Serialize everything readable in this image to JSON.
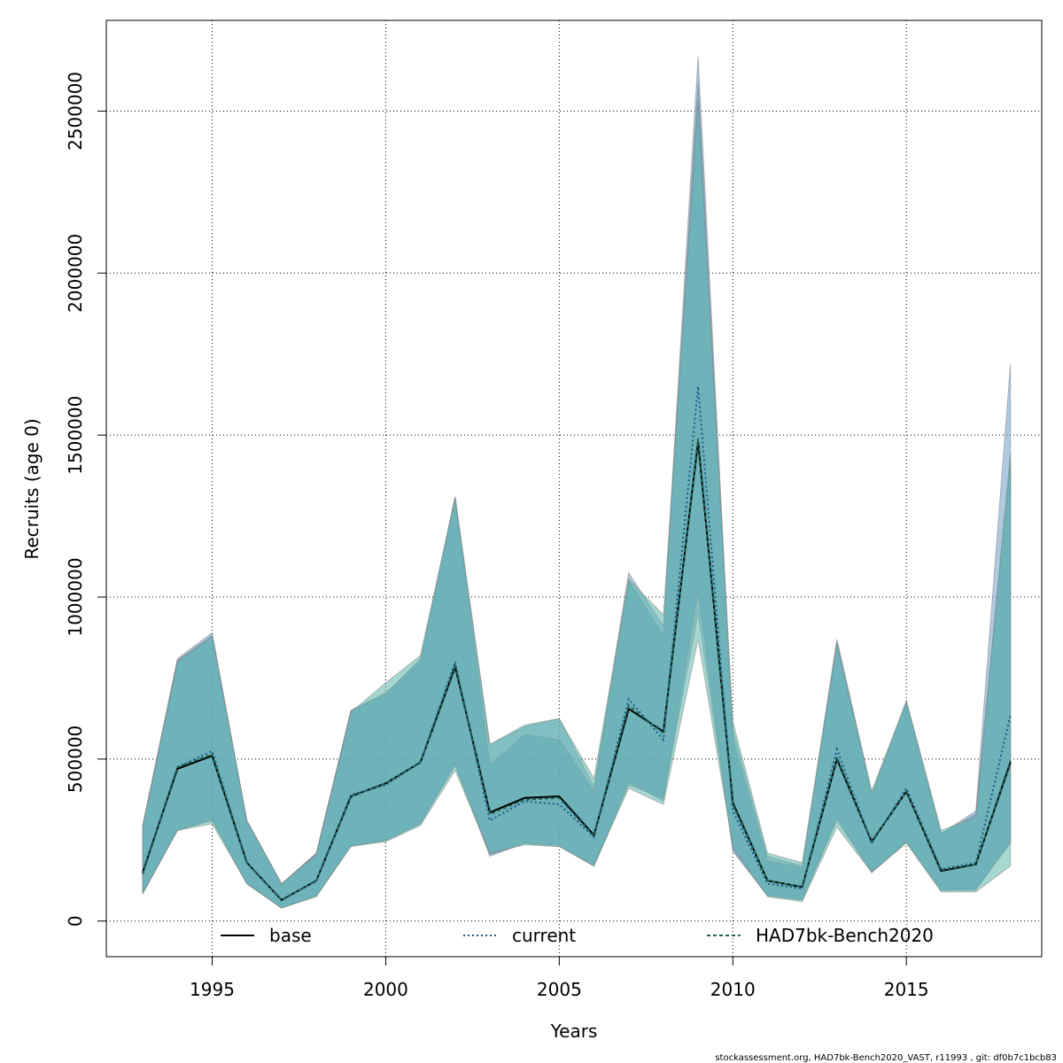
{
  "chart_data": {
    "type": "area",
    "xlabel": "Years",
    "ylabel": "Recruits (age 0)",
    "xlim": [
      1991.95,
      2018.9
    ],
    "ylim": [
      -110000,
      2780000
    ],
    "x_ticks": [
      1995,
      2000,
      2005,
      2010,
      2015
    ],
    "x_tick_labels": [
      "1995",
      "2000",
      "2005",
      "2010",
      "2015"
    ],
    "y_ticks": [
      0,
      500000,
      1000000,
      1500000,
      2000000,
      2500000
    ],
    "y_tick_labels": [
      "0",
      "500000",
      "1000000",
      "1500000",
      "2000000",
      "2500000"
    ],
    "grid": true,
    "legend_position": "bottom",
    "x": [
      1993,
      1994,
      1995,
      1996,
      1997,
      1998,
      1999,
      2000,
      2001,
      2002,
      2003,
      2004,
      2005,
      2006,
      2007,
      2008,
      2009,
      2010,
      2011,
      2012,
      2013,
      2014,
      2015,
      2016,
      2017,
      2018
    ],
    "series": [
      {
        "name": "base",
        "color": "#000000",
        "line_style": "solid",
        "band_color": "#6E9CC6",
        "values": [
          150000,
          470000,
          510000,
          180000,
          65000,
          125000,
          385000,
          425000,
          490000,
          785000,
          335000,
          380000,
          385000,
          265000,
          655000,
          585000,
          1480000,
          365000,
          125000,
          105000,
          500000,
          245000,
          400000,
          155000,
          175000,
          490000
        ],
        "lower": [
          85000,
          280000,
          315000,
          115000,
          40000,
          78000,
          232000,
          250000,
          300000,
          480000,
          200000,
          240000,
          230000,
          170000,
          420000,
          380000,
          950000,
          220000,
          80000,
          65000,
          310000,
          150000,
          245000,
          95000,
          100000,
          240000
        ],
        "upper": [
          295000,
          810000,
          890000,
          310000,
          115000,
          210000,
          650000,
          705000,
          800000,
          1310000,
          545000,
          600000,
          625000,
          415000,
          1075000,
          910000,
          2670000,
          590000,
          200000,
          170000,
          870000,
          400000,
          670000,
          270000,
          340000,
          1720000
        ]
      },
      {
        "name": "current",
        "color": "#1F5A87",
        "line_style": "dotted",
        "band_color": "#5F96C0",
        "values": [
          150000,
          475000,
          525000,
          180000,
          65000,
          125000,
          390000,
          420000,
          490000,
          800000,
          310000,
          370000,
          360000,
          260000,
          685000,
          560000,
          1650000,
          340000,
          115000,
          100000,
          530000,
          240000,
          410000,
          160000,
          180000,
          635000
        ],
        "lower": [
          85000,
          280000,
          310000,
          115000,
          40000,
          78000,
          232000,
          248000,
          300000,
          485000,
          205000,
          240000,
          235000,
          170000,
          430000,
          370000,
          1020000,
          215000,
          78000,
          65000,
          320000,
          150000,
          245000,
          95000,
          95000,
          245000
        ],
        "upper": [
          295000,
          805000,
          880000,
          310000,
          115000,
          210000,
          650000,
          700000,
          810000,
          1310000,
          480000,
          575000,
          560000,
          400000,
          1050000,
          880000,
          2590000,
          560000,
          185000,
          165000,
          860000,
          385000,
          680000,
          270000,
          330000,
          1420000
        ]
      },
      {
        "name": "HAD7bk-Bench2020",
        "color": "#1E6458",
        "line_style": "dashed",
        "band_color": "#5CB7A9",
        "values": [
          145000,
          475000,
          515000,
          180000,
          65000,
          125000,
          385000,
          425000,
          490000,
          790000,
          330000,
          375000,
          380000,
          262000,
          665000,
          580000,
          1490000,
          360000,
          125000,
          105000,
          505000,
          245000,
          400000,
          158000,
          175000,
          495000
        ],
        "lower": [
          85000,
          280000,
          300000,
          115000,
          40000,
          75000,
          230000,
          245000,
          295000,
          465000,
          210000,
          235000,
          230000,
          170000,
          410000,
          360000,
          870000,
          230000,
          75000,
          60000,
          290000,
          150000,
          240000,
          90000,
          90000,
          170000
        ],
        "upper": [
          290000,
          800000,
          880000,
          310000,
          115000,
          205000,
          645000,
          735000,
          820000,
          1305000,
          545000,
          605000,
          625000,
          440000,
          1055000,
          945000,
          2530000,
          615000,
          210000,
          180000,
          860000,
          400000,
          680000,
          280000,
          320000,
          1445000
        ]
      }
    ]
  },
  "footer": {
    "text": "stockassessment.org, HAD7bk-Bench2020_VAST, r11993 , git: df0b7c1bcb83"
  }
}
